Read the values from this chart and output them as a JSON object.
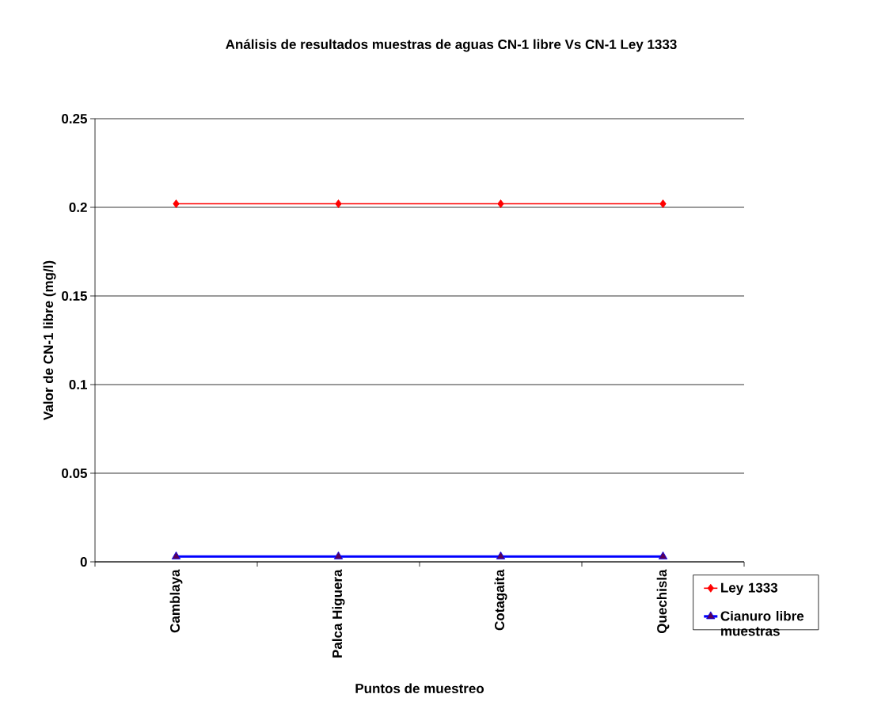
{
  "chart_data": {
    "type": "line",
    "title": "Análisis de resultados muestras de aguas CN-1 libre Vs CN-1 Ley 1333",
    "xlabel": "Puntos de muestreo",
    "ylabel": "Valor de CN-1 libre (mg/l)",
    "categories": [
      "Camblaya",
      "Palca Higuera",
      "Cotagaita",
      "Quechisla"
    ],
    "series": [
      {
        "name": "Ley 1333",
        "color": "#ff0000",
        "marker": "diamond",
        "values": [
          0.202,
          0.202,
          0.202,
          0.202
        ]
      },
      {
        "name": "Cianuro libre muestras",
        "color": "#0000ff",
        "marker": "triangle",
        "values": [
          0.003,
          0.003,
          0.003,
          0.003
        ]
      }
    ],
    "ylim": [
      0,
      0.25
    ],
    "yticks": [
      0,
      0.05,
      0.1,
      0.15,
      0.2,
      0.25
    ],
    "grid": "y",
    "legend": "bottom right"
  }
}
